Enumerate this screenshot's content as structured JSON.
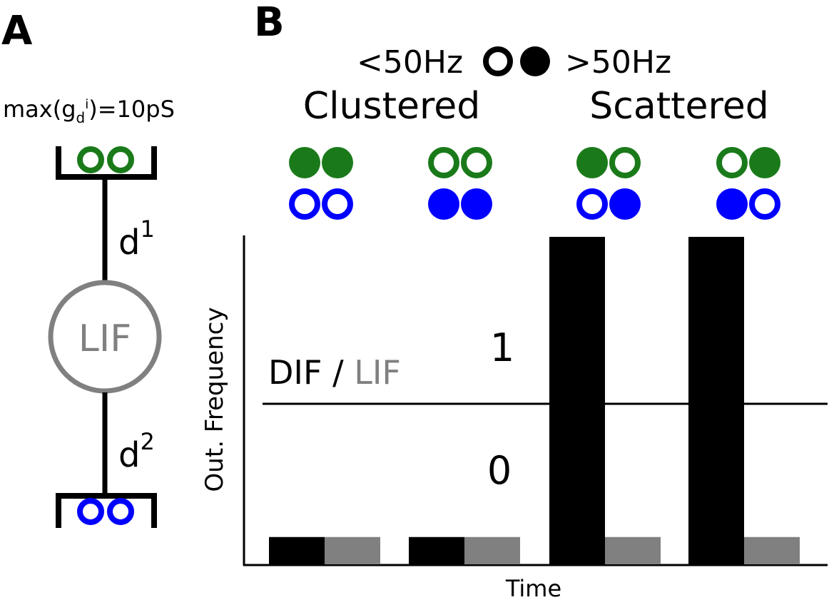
{
  "panel_a": {
    "label": "A",
    "conductance_prefix": "max(g",
    "conductance_sub": "d",
    "conductance_sup": "i",
    "conductance_suffix": ")=10pS",
    "neuron_label": "LIF",
    "upper_dendrite_base": "d",
    "upper_dendrite_sup": "1",
    "lower_dendrite_base": "d",
    "lower_dendrite_sup": "2"
  },
  "panel_b": {
    "label": "B",
    "legend_low": "<50Hz",
    "legend_high": ">50Hz",
    "group_clustered": "Clustered",
    "group_scattered": "Scattered",
    "ylabel": "Out. Frequency",
    "xlabel": "Time",
    "ratio_label_dif": "DIF",
    "ratio_label_sep": " / ",
    "ratio_label_lif": "LIF",
    "tick_high": "1",
    "tick_low": "0"
  },
  "colors": {
    "green": "#1a7a1a",
    "blue": "#0000ff",
    "black": "#000000",
    "gray": "#808080"
  },
  "chart_data": {
    "type": "bar",
    "categories": [
      "green-filled blue-open",
      "green-open blue-filled",
      "green-filled/open blue-open/filled",
      "green-open/filled blue-filled/open"
    ],
    "series": [
      {
        "name": "DIF",
        "values": [
          0.15,
          0.15,
          1.8,
          1.8
        ]
      },
      {
        "name": "LIF",
        "values": [
          0.15,
          0.15,
          0.15,
          0.15
        ]
      }
    ],
    "xlabel": "Time",
    "ylabel": "Out. Frequency",
    "reference_line": 1.0
  }
}
